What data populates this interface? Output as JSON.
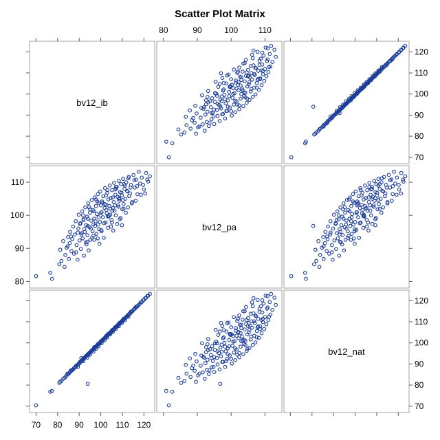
{
  "chart_data": {
    "type": "scatter",
    "subtype": "scatter-matrix",
    "title": "Scatter Plot Matrix",
    "variables": [
      "bv12_ib",
      "bv12_pa",
      "bv12_nat"
    ],
    "axes": {
      "bv12_ib": {
        "range": [
          67,
          125
        ],
        "ticks": [
          70,
          80,
          90,
          100,
          110,
          120
        ],
        "tick_labels": [
          "70",
          "80",
          "90",
          "100",
          "110",
          "120"
        ]
      },
      "bv12_pa": {
        "range": [
          78,
          115
        ],
        "ticks": [
          80,
          90,
          100,
          110
        ],
        "tick_labels": [
          "80",
          "90",
          "100",
          "110"
        ]
      },
      "bv12_nat": {
        "range": [
          67,
          125
        ],
        "ticks": [
          70,
          80,
          90,
          100,
          110,
          120
        ],
        "tick_labels": [
          "70",
          "80",
          "90",
          "100",
          "110",
          "120"
        ]
      }
    },
    "tick_label_positions": {
      "top": "bv12_pa",
      "right": [
        "bv12_ib",
        "bv12_nat"
      ],
      "left": [
        "bv12_pa"
      ],
      "bottom": [
        "bv12_ib"
      ]
    },
    "marker": {
      "shape": "open-circle",
      "color": "#1d3f9a"
    },
    "grid": false,
    "point_count": 190,
    "points": {
      "bv12_ib": [
        70.0,
        76.6,
        77.4,
        80.8,
        81.2,
        81.8,
        82.6,
        83.2,
        83.6,
        84.2,
        84.8,
        85.2,
        85.6,
        85.8,
        86.4,
        86.8,
        87.2,
        87.6,
        88.0,
        88.4,
        88.8,
        89.2,
        89.6,
        89.8,
        90.2,
        90.6,
        90.8,
        91.2,
        91.4,
        91.6,
        92.0,
        92.2,
        92.4,
        92.8,
        93.0,
        93.2,
        93.6,
        93.8,
        94.2,
        94.4,
        94.8,
        95.0,
        95.2,
        95.6,
        95.8,
        96.2,
        96.4,
        96.6,
        97.0,
        97.2,
        97.4,
        97.8,
        98.0,
        98.2,
        98.6,
        98.8,
        99.0,
        99.4,
        99.6,
        99.8,
        100.2,
        100.4,
        100.6,
        101.0,
        101.2,
        101.4,
        101.8,
        102.0,
        102.2,
        102.6,
        102.8,
        103.0,
        103.4,
        103.6,
        103.8,
        104.2,
        104.4,
        104.6,
        105.0,
        105.2,
        105.4,
        105.8,
        106.0,
        106.2,
        106.6,
        106.8,
        107.0,
        107.4,
        107.6,
        107.8,
        108.2,
        108.4,
        108.6,
        109.0,
        109.2,
        109.4,
        109.8,
        110.0,
        110.4,
        110.6,
        111.0,
        111.4,
        111.8,
        112.2,
        112.6,
        113.0,
        113.6,
        114.0,
        114.6,
        115.2,
        115.8,
        116.4,
        117.0,
        117.6,
        118.2,
        119.0,
        120.0,
        121.0,
        122.0,
        122.8,
        84.6,
        86.2,
        88.6,
        90.4,
        91.8,
        92.6,
        93.4,
        94.0,
        94.6,
        95.4,
        96.0,
        96.8,
        97.6,
        98.4,
        99.2,
        100.0,
        100.8,
        101.6,
        102.4,
        103.2,
        104.0,
        104.8,
        105.6,
        106.4,
        107.2,
        108.0,
        108.8,
        109.6,
        110.2,
        110.8,
        111.6,
        112.4,
        113.2,
        114.4,
        115.6,
        116.8,
        118.6,
        89.4,
        92.0,
        93.8,
        95.0,
        96.6,
        97.8,
        99.0,
        100.4,
        101.8,
        103.0,
        104.4,
        105.6,
        107.0,
        108.4,
        109.8,
        111.2,
        112.8,
        94.0,
        97.0,
        100.0,
        103.4,
        106.6,
        98.6,
        102.6,
        105.2,
        108.6,
        110.6,
        113.8,
        116.2,
        119.6,
        120.6,
        121.6,
        91.0
      ],
      "bv12_pa": [
        81.6,
        82.6,
        80.8,
        85.2,
        89.6,
        86.2,
        92.2,
        84.4,
        88.0,
        90.2,
        93.4,
        86.8,
        91.6,
        95.0,
        89.2,
        92.8,
        96.6,
        88.4,
        94.2,
        98.2,
        91.0,
        86.6,
        96.0,
        100.2,
        92.4,
        97.6,
        89.8,
        94.6,
        101.2,
        93.0,
        98.8,
        87.8,
        95.8,
        102.4,
        91.8,
        97.0,
        99.6,
        94.0,
        103.6,
        89.4,
        96.4,
        100.8,
        92.6,
        98.4,
        104.6,
        95.2,
        101.6,
        93.8,
        99.0,
        105.4,
        96.8,
        102.8,
        94.4,
        100.4,
        106.4,
        97.2,
        103.8,
        91.4,
        98.0,
        107.2,
        95.6,
        101.0,
        104.2,
        99.4,
        105.8,
        93.2,
        102.2,
        108.2,
        97.8,
        103.2,
        100.6,
        106.8,
        96.2,
        104.8,
        99.8,
        109.0,
        102.0,
        105.2,
        98.6,
        107.6,
        101.4,
        95.4,
        104.0,
        109.8,
        103.0,
        106.2,
        100.0,
        108.6,
        97.4,
        105.6,
        102.6,
        110.4,
        104.4,
        107.0,
        99.2,
        109.4,
        106.0,
        101.8,
        111.0,
        103.4,
        108.0,
        105.0,
        110.0,
        107.4,
        102.4,
        111.6,
        106.6,
        109.2,
        104.0,
        112.2,
        108.4,
        110.8,
        106.4,
        113.2,
        109.6,
        111.4,
        107.8,
        112.8,
        110.2,
        111.8,
        90.6,
        93.6,
        88.8,
        97.4,
        100.0,
        95.0,
        91.2,
        99.0,
        102.4,
        96.0,
        93.2,
        101.2,
        98.2,
        104.2,
        95.8,
        100.6,
        103.8,
        97.6,
        106.0,
        99.8,
        102.8,
        96.6,
        105.4,
        101.4,
        108.0,
        103.0,
        98.8,
        106.8,
        104.6,
        109.4,
        100.8,
        107.2,
        105.8,
        103.6,
        110.6,
        108.8,
        106.2,
        94.8,
        98.6,
        92.0,
        101.8,
        97.2,
        104.8,
        99.4,
        95.2,
        103.4,
        107.6,
        100.2,
        102.2,
        108.6,
        105.0,
        97.0,
        109.0,
        111.2,
        96.8,
        92.6,
        103.0,
        99.6,
        107.8,
        93.0,
        101.6,
        97.8,
        105.2,
        102.0,
        108.4,
        104.4,
        109.2,
        106.6,
        110.8,
        94.2
      ],
      "bv12_nat": [
        70.4,
        76.8,
        77.2,
        81.0,
        81.6,
        82.0,
        83.0,
        83.4,
        83.8,
        84.6,
        85.2,
        85.4,
        86.0,
        86.2,
        86.8,
        87.2,
        87.4,
        88.0,
        88.4,
        88.6,
        89.2,
        89.6,
        89.8,
        90.2,
        90.4,
        91.0,
        91.2,
        91.4,
        91.8,
        92.0,
        92.4,
        92.6,
        92.8,
        93.2,
        93.4,
        93.6,
        94.0,
        94.2,
        94.6,
        94.8,
        95.2,
        95.4,
        95.6,
        96.0,
        96.2,
        96.6,
        96.8,
        97.0,
        97.4,
        97.6,
        97.8,
        98.2,
        98.4,
        98.6,
        99.0,
        99.2,
        99.4,
        99.8,
        100.0,
        100.2,
        100.6,
        100.8,
        101.0,
        101.4,
        101.6,
        101.8,
        102.2,
        102.4,
        102.6,
        103.0,
        103.2,
        103.4,
        103.8,
        104.0,
        104.2,
        104.6,
        104.8,
        105.0,
        105.4,
        105.6,
        105.8,
        106.2,
        106.4,
        106.6,
        107.0,
        107.2,
        107.4,
        107.8,
        108.0,
        108.2,
        108.6,
        108.8,
        109.0,
        109.4,
        109.6,
        109.8,
        110.2,
        110.4,
        110.8,
        111.0,
        111.4,
        111.8,
        112.2,
        112.6,
        113.0,
        113.4,
        114.0,
        114.4,
        115.0,
        115.6,
        116.2,
        116.8,
        117.4,
        118.0,
        118.6,
        119.4,
        120.4,
        121.4,
        122.4,
        123.2,
        85.4,
        87.0,
        89.2,
        91.0,
        92.4,
        93.2,
        94.0,
        94.6,
        95.2,
        96.0,
        96.6,
        97.4,
        98.2,
        99.0,
        99.8,
        100.6,
        101.4,
        102.2,
        103.0,
        103.8,
        104.6,
        105.4,
        106.2,
        107.0,
        107.8,
        108.6,
        109.4,
        110.2,
        110.8,
        111.4,
        112.2,
        113.0,
        113.8,
        115.0,
        116.2,
        117.4,
        119.2,
        88.6,
        91.4,
        93.0,
        94.4,
        95.8,
        97.2,
        98.4,
        99.8,
        101.2,
        102.6,
        104.0,
        105.2,
        106.6,
        108.0,
        109.4,
        110.8,
        112.4,
        80.6,
        98.0,
        100.8,
        104.2,
        107.4,
        99.4,
        103.4,
        106.0,
        109.4,
        111.4,
        114.6,
        117.0,
        120.2,
        121.2,
        122.2,
        92.8
      ]
    }
  }
}
